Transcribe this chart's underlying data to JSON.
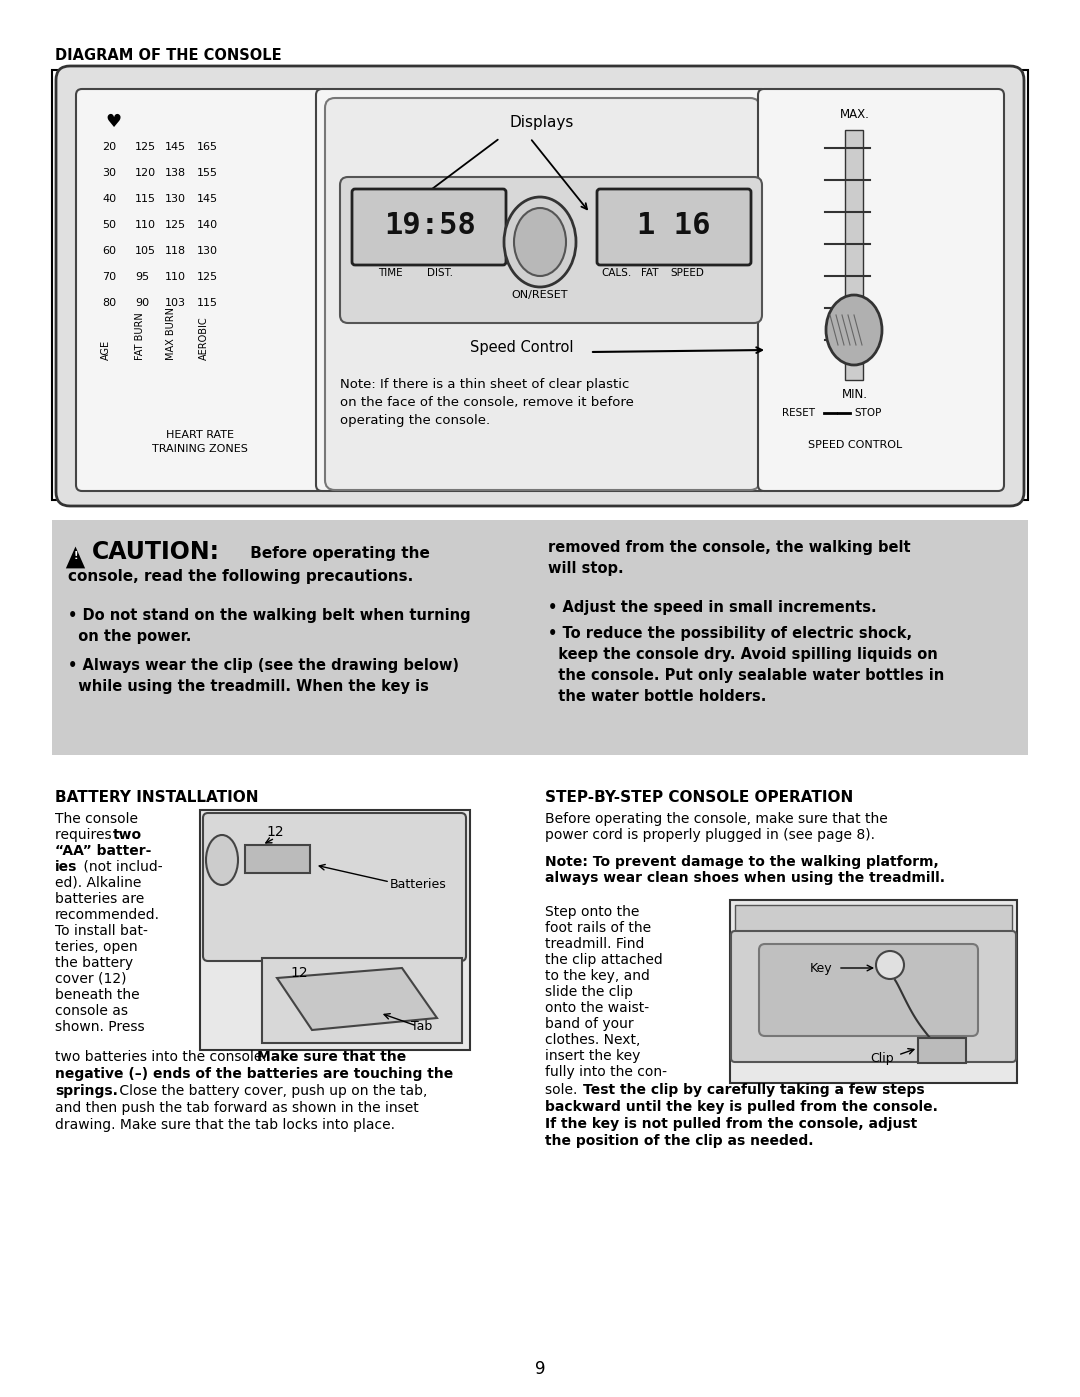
{
  "page_bg": "#ffffff",
  "section1_title": "DIAGRAM OF THE CONSOLE",
  "caution_bg": "#cccccc",
  "battery_title": "BATTERY INSTALLATION",
  "step_title": "STEP-BY-STEP CONSOLE OPERATION",
  "page_number": "9",
  "displays_label": "Displays",
  "time_label": "TIME",
  "dist_label": "DIST.",
  "cals_label": "CALS.",
  "fat_label": "FAT",
  "speed_label": "SPEED",
  "on_reset_label": "ON/RESET",
  "speed_control_label": "Speed Control",
  "heart_rate_label": "HEART RATE\nTRAINING ZONES",
  "speed_control_box": "SPEED CONTROL",
  "reset_label": "RESET",
  "stop_label": "STOP",
  "max_label": "MAX.",
  "min_label": "MIN.",
  "time_display": "19:58",
  "speed_display": "1 16",
  "batteries_label": "Batteries",
  "tab_label": "Tab",
  "key_label": "Key",
  "clip_label": "Clip",
  "hr_rows": [
    [
      "20",
      "125",
      "145",
      "165"
    ],
    [
      "30",
      "120",
      "138",
      "155"
    ],
    [
      "40",
      "115",
      "130",
      "145"
    ],
    [
      "50",
      "110",
      "125",
      "140"
    ],
    [
      "60",
      "105",
      "118",
      "130"
    ],
    [
      "70",
      "95",
      "110",
      "125"
    ],
    [
      "80",
      "90",
      "103",
      "115"
    ]
  ]
}
